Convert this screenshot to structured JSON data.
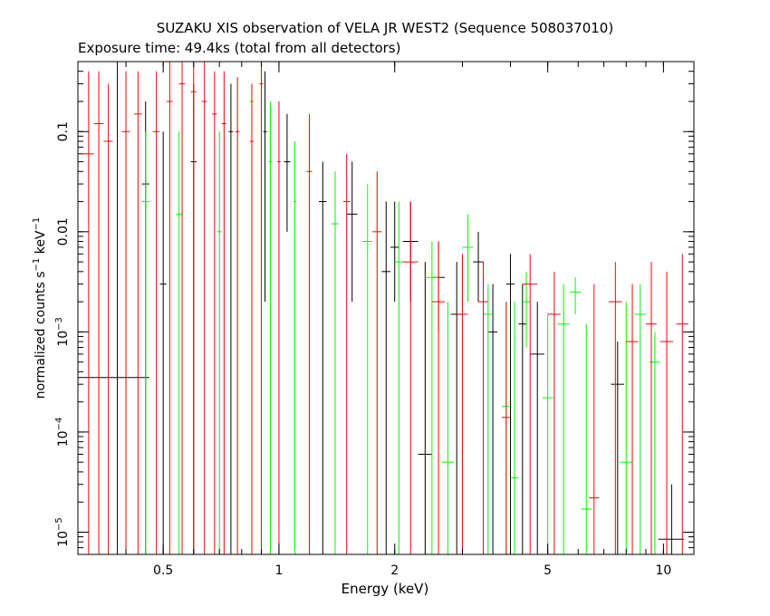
{
  "title": "SUZAKU XIS observation of VELA JR WEST2 (Sequence 508037010)",
  "subtitle": "Exposure time: 49.4ks (total from all detectors)",
  "chart_data": {
    "type": "scatter",
    "title": "SUZAKU XIS observation of VELA JR WEST2 (Sequence 508037010)",
    "subtitle": "Exposure time: 49.4ks (total from all detectors)",
    "xlabel": "Energy (keV)",
    "ylabel": {
      "main": "normalized counts s",
      "exp1": "−1",
      "mid": " keV",
      "exp2": "−1"
    },
    "xscale": "log",
    "yscale": "log",
    "xlim": [
      0.3,
      12
    ],
    "ylim": [
      6e-06,
      0.5
    ],
    "xticks": [
      {
        "value": 0.5,
        "label": "0.5"
      },
      {
        "value": 1,
        "label": "1"
      },
      {
        "value": 2,
        "label": "2"
      },
      {
        "value": 5,
        "label": "5"
      },
      {
        "value": 10,
        "label": "10"
      }
    ],
    "yticks": [
      {
        "value": 0.1,
        "base": "0.1",
        "exp": ""
      },
      {
        "value": 0.01,
        "base": "0.01",
        "exp": ""
      },
      {
        "value": 0.001,
        "base": "10",
        "exp": "−3"
      },
      {
        "value": 0.0001,
        "base": "10",
        "exp": "−4"
      },
      {
        "value": 1e-05,
        "base": "10",
        "exp": "−5"
      }
    ],
    "colors": {
      "red": "#ff0000",
      "green": "#00ff00",
      "black": "#000000"
    },
    "series": [
      {
        "color": "#000000",
        "points": [
          [
            0.38,
            0.00035,
            0.3,
            0.46,
            6e-06,
            0.5
          ],
          [
            0.45,
            0.03,
            0.44,
            0.46,
            6e-06,
            0.2
          ],
          [
            0.5,
            0.003,
            0.49,
            0.51,
            6e-06,
            0.1
          ],
          [
            0.6,
            0.05,
            0.59,
            0.61,
            6e-06,
            0.3
          ],
          [
            0.75,
            0.1,
            0.74,
            0.76,
            6e-06,
            0.3
          ],
          [
            0.92,
            0.1,
            0.91,
            0.93,
            0.002,
            0.4
          ],
          [
            1.05,
            0.05,
            1.03,
            1.07,
            0.01,
            0.15
          ],
          [
            1.3,
            0.02,
            1.27,
            1.33,
            6e-06,
            0.05
          ],
          [
            1.55,
            0.015,
            1.5,
            1.6,
            0.002,
            0.05
          ],
          [
            1.9,
            0.004,
            1.85,
            1.95,
            6e-06,
            0.02
          ],
          [
            2.0,
            0.007,
            1.95,
            2.05,
            0.002,
            0.02
          ],
          [
            2.2,
            0.008,
            2.1,
            2.3,
            0.002,
            0.02
          ],
          [
            2.4,
            6e-05,
            2.3,
            2.5,
            6e-06,
            0.005
          ],
          [
            2.6,
            0.0035,
            2.5,
            2.7,
            0.001,
            0.008
          ],
          [
            2.9,
            0.0015,
            2.8,
            3.0,
            6e-06,
            0.005
          ],
          [
            3.3,
            0.005,
            3.2,
            3.4,
            0.002,
            0.01
          ],
          [
            3.6,
            0.001,
            3.5,
            3.7,
            6e-06,
            0.003
          ],
          [
            4.0,
            0.003,
            3.9,
            4.1,
            6e-06,
            0.006
          ],
          [
            4.3,
            0.0012,
            4.2,
            4.4,
            6e-06,
            0.003
          ],
          [
            4.7,
            0.0006,
            4.5,
            4.9,
            6e-06,
            0.002
          ],
          [
            7.6,
            0.0003,
            7.3,
            7.9,
            6e-06,
            0.0008
          ],
          [
            10.5,
            8.5e-06,
            9.7,
            11.3,
            6e-06,
            3e-05
          ]
        ]
      },
      {
        "color": "#00ff00",
        "points": [
          [
            0.45,
            0.02,
            0.44,
            0.46,
            6e-06,
            0.1
          ],
          [
            0.55,
            0.015,
            0.54,
            0.56,
            6e-06,
            0.1
          ],
          [
            0.7,
            0.01,
            0.69,
            0.71,
            6e-06,
            0.1
          ],
          [
            0.85,
            0.2,
            0.84,
            0.86,
            6e-06,
            0.3
          ],
          [
            0.95,
            0.05,
            0.94,
            0.96,
            6e-06,
            0.2
          ],
          [
            1.1,
            0.02,
            1.09,
            1.11,
            6e-06,
            0.08
          ],
          [
            1.4,
            0.012,
            1.37,
            1.43,
            6e-06,
            0.04
          ],
          [
            1.7,
            0.008,
            1.65,
            1.75,
            6e-06,
            0.03
          ],
          [
            2.05,
            0.005,
            2.0,
            2.1,
            6e-06,
            0.02
          ],
          [
            2.5,
            0.0035,
            2.4,
            2.6,
            6e-06,
            0.008
          ],
          [
            2.75,
            5e-05,
            2.65,
            2.85,
            6e-06,
            0.002
          ],
          [
            3.1,
            0.007,
            3.0,
            3.2,
            0.002,
            0.015
          ],
          [
            3.5,
            0.0015,
            3.4,
            3.6,
            6e-06,
            0.003
          ],
          [
            3.9,
            0.00018,
            3.8,
            4.0,
            6e-06,
            0.002
          ],
          [
            4.1,
            3.5e-05,
            4.0,
            4.2,
            6e-06,
            0.002
          ],
          [
            4.4,
            0.002,
            4.3,
            4.5,
            0.0007,
            0.004
          ],
          [
            5.0,
            0.00022,
            4.85,
            5.15,
            6e-06,
            0.0015
          ],
          [
            5.5,
            0.0012,
            5.3,
            5.7,
            6e-06,
            0.003
          ],
          [
            5.9,
            0.0025,
            5.7,
            6.1,
            0.0015,
            0.0035
          ],
          [
            6.3,
            1.7e-05,
            6.1,
            6.5,
            6e-06,
            0.0012
          ],
          [
            8.0,
            5e-05,
            7.7,
            8.3,
            6e-06,
            0.002
          ],
          [
            8.7,
            0.0015,
            8.4,
            9.0,
            6e-06,
            0.003
          ],
          [
            9.5,
            0.0005,
            9.2,
            9.8,
            6e-06,
            0.001
          ]
        ]
      },
      {
        "color": "#ff0000",
        "points": [
          [
            0.32,
            0.06,
            0.31,
            0.33,
            6e-06,
            0.4
          ],
          [
            0.34,
            0.12,
            0.33,
            0.35,
            6e-06,
            0.4
          ],
          [
            0.36,
            0.08,
            0.35,
            0.37,
            6e-06,
            0.3
          ],
          [
            0.4,
            0.1,
            0.39,
            0.41,
            6e-06,
            0.4
          ],
          [
            0.43,
            0.15,
            0.42,
            0.44,
            6e-06,
            0.4
          ],
          [
            0.48,
            0.1,
            0.47,
            0.49,
            6e-06,
            0.4
          ],
          [
            0.52,
            0.2,
            0.51,
            0.53,
            6e-06,
            0.5
          ],
          [
            0.56,
            0.3,
            0.55,
            0.57,
            6e-06,
            0.5
          ],
          [
            0.6,
            0.25,
            0.59,
            0.61,
            6e-06,
            0.5
          ],
          [
            0.64,
            0.2,
            0.63,
            0.65,
            6e-06,
            0.5
          ],
          [
            0.68,
            0.15,
            0.67,
            0.69,
            6e-06,
            0.4
          ],
          [
            0.72,
            0.12,
            0.71,
            0.73,
            6e-06,
            0.4
          ],
          [
            0.78,
            0.1,
            0.77,
            0.79,
            6e-06,
            0.35
          ],
          [
            0.85,
            0.08,
            0.84,
            0.86,
            6e-06,
            0.3
          ],
          [
            0.9,
            0.3,
            0.89,
            0.91,
            6e-06,
            0.45
          ],
          [
            1.0,
            0.05,
            0.99,
            1.01,
            6e-06,
            0.2
          ],
          [
            1.2,
            0.04,
            1.18,
            1.22,
            6e-06,
            0.15
          ],
          [
            1.5,
            0.02,
            1.47,
            1.53,
            6e-06,
            0.06
          ],
          [
            1.8,
            0.01,
            1.75,
            1.85,
            6e-06,
            0.04
          ],
          [
            2.2,
            0.005,
            2.1,
            2.3,
            6e-06,
            0.02
          ],
          [
            2.6,
            0.002,
            2.5,
            2.7,
            6e-06,
            0.008
          ],
          [
            3.0,
            0.0015,
            2.9,
            3.1,
            6e-06,
            0.006
          ],
          [
            3.4,
            0.002,
            3.3,
            3.5,
            6e-06,
            0.005
          ],
          [
            3.9,
            0.00014,
            3.8,
            4.0,
            6e-06,
            0.002
          ],
          [
            4.5,
            0.003,
            4.3,
            4.7,
            6e-06,
            0.006
          ],
          [
            5.2,
            0.0015,
            5.0,
            5.4,
            6e-06,
            0.004
          ],
          [
            6.6,
            2.2e-05,
            6.4,
            6.8,
            6e-06,
            0.003
          ],
          [
            7.5,
            0.002,
            7.2,
            7.8,
            6e-06,
            0.005
          ],
          [
            8.3,
            0.0008,
            8.0,
            8.6,
            6e-06,
            0.003
          ],
          [
            9.3,
            0.0012,
            9.0,
            9.6,
            6e-06,
            0.005
          ],
          [
            10.2,
            0.0008,
            9.8,
            10.6,
            6e-06,
            0.004
          ],
          [
            11.2,
            0.0012,
            10.8,
            11.6,
            6e-06,
            0.006
          ]
        ]
      }
    ]
  }
}
